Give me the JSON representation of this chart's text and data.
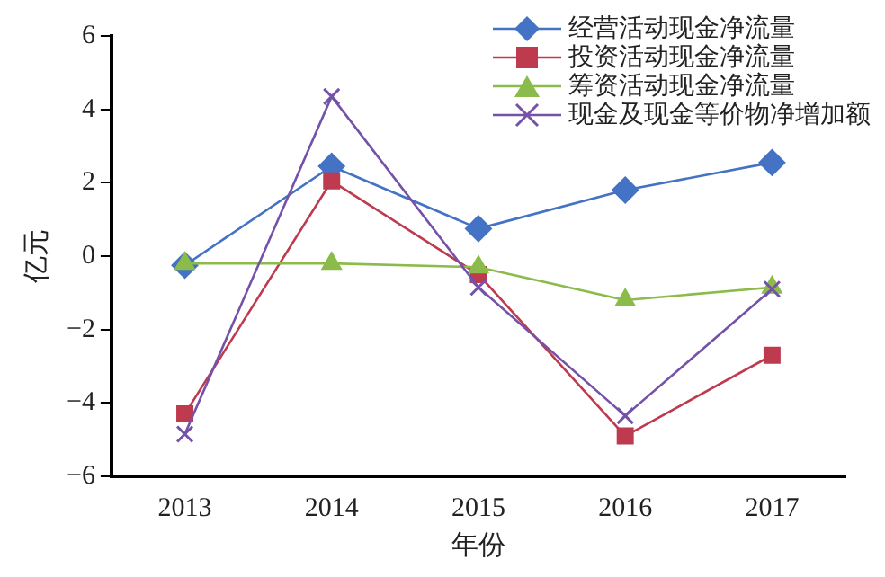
{
  "chart_data": {
    "type": "line",
    "xlabel": "年份",
    "ylabel": "亿元",
    "categories": [
      "2013",
      "2014",
      "2015",
      "2016",
      "2017"
    ],
    "series": [
      {
        "name": "经营活动现金净流量",
        "color": "#4472c4",
        "marker": "diamond",
        "values": [
          -0.25,
          2.45,
          0.75,
          1.8,
          2.55
        ]
      },
      {
        "name": "投资活动现金净流量",
        "color": "#be3a4e",
        "marker": "square",
        "values": [
          -4.3,
          2.05,
          -0.5,
          -4.9,
          -2.7
        ]
      },
      {
        "name": "筹资活动现金净流量",
        "color": "#8bbb4a",
        "marker": "triangle",
        "values": [
          -0.2,
          -0.2,
          -0.3,
          -1.2,
          -0.85
        ]
      },
      {
        "name": "现金及现金等价物净增加额",
        "color": "#7452a8",
        "marker": "cross",
        "values": [
          -4.85,
          4.35,
          -0.85,
          -4.35,
          -0.9
        ]
      }
    ],
    "ylim": [
      -6,
      6
    ],
    "yticks": [
      -6,
      -4,
      -2,
      0,
      2,
      4,
      6
    ],
    "grid": false,
    "legend": "top right",
    "line_style": "solid"
  }
}
